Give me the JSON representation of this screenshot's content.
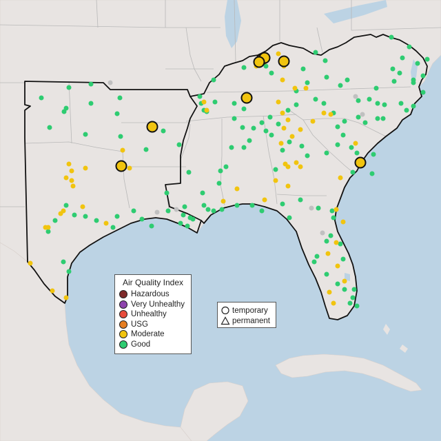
{
  "aqi_legend": {
    "title": "Air Quality Index",
    "items": [
      {
        "label": "Hazardous",
        "color": "#7e2a2a"
      },
      {
        "label": "Very Unhealthy",
        "color": "#8e44ad"
      },
      {
        "label": "Unhealthy",
        "color": "#e74c3c"
      },
      {
        "label": "USG",
        "color": "#e67e22"
      },
      {
        "label": "Moderate",
        "color": "#f1c40f"
      },
      {
        "label": "Good",
        "color": "#2ecc71"
      }
    ]
  },
  "monitor_legend": {
    "items": [
      {
        "label": "temporary",
        "icon": "circle-icon"
      },
      {
        "label": "permanent",
        "icon": "triangle-icon"
      }
    ]
  },
  "colors": {
    "land": "#e8e4e2",
    "water": "#bcd3e4",
    "good": "#2ecc71",
    "moderate": "#f1c40f",
    "no_data": "#c0c0c0"
  }
}
